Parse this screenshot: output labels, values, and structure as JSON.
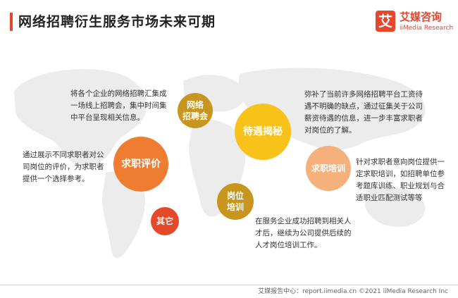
{
  "title": "网络招聘衍生服务市场未来可期",
  "logo": {
    "mark": "艾",
    "name": "艾媒咨询",
    "sub": "iiMedia Research"
  },
  "nodes": [
    {
      "id": "wangluo",
      "label1": "网络",
      "label2": "招聘会",
      "color": "#c8961e"
    },
    {
      "id": "qiuzhi",
      "label1": "求职评价",
      "label2": "",
      "color": "#ef7d31"
    },
    {
      "id": "daiyu",
      "label1": "待遇揭秘",
      "label2": "",
      "color": "#f8c21b"
    },
    {
      "id": "gangwei",
      "label1": "岗位",
      "label2": "培训",
      "color": "#c8961e"
    },
    {
      "id": "qiuzhipx",
      "label1": "求职培训",
      "label2": "",
      "color": "#f5b07c"
    },
    {
      "id": "qita",
      "label1": "其它",
      "label2": "",
      "color": "#e44a2a"
    }
  ],
  "descriptions": {
    "wangluo": [
      "将各个企业的网络招聘汇集成",
      "一场线上招聘会，集中时间集",
      "中平台呈现相关信息。"
    ],
    "qiuzhi": [
      "通过展示不同求职者对公",
      "司岗位的评价，为求职者",
      "提供一个选择参考。"
    ],
    "daiyu": [
      "弥补了当前许多网络招聘平台工资待",
      "遇不明确的缺点，通过征集关于公司",
      "薪资待遇的信息，进一步丰富求职者",
      "对岗位的了解。"
    ],
    "qiuzhipx": [
      "针对求职者意向岗位提供一",
      "定求职培训，如招聘单位参",
      "考题库训练、职业规划与合",
      "适职业匹配测试等等"
    ],
    "gangwei": [
      "在服务企业成功招聘到相关人",
      "才后，继续为公司提供后续的",
      "人才岗位培训工作。"
    ]
  },
  "footer": "艾媒报告中心：report.iimedia.cn   ©2021  iiMedia Research  Inc"
}
